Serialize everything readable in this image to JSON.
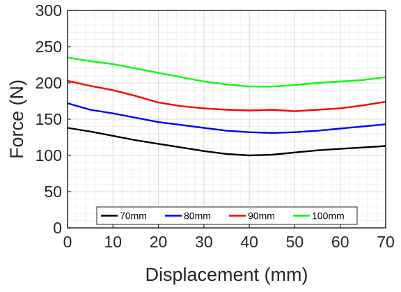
{
  "chart_data": {
    "type": "line",
    "xlabel": "Displacement (mm)",
    "ylabel": "Force (N)",
    "xlim": [
      0,
      70
    ],
    "ylim": [
      0,
      300
    ],
    "xticks": [
      0,
      10,
      20,
      30,
      40,
      50,
      60,
      70
    ],
    "yticks": [
      0,
      50,
      100,
      150,
      200,
      250,
      300
    ],
    "grid": true,
    "minor_grid": true,
    "legend_position": "bottom-center",
    "series": [
      {
        "name": "70mm",
        "color": "#000000",
        "x": [
          0,
          5,
          10,
          15,
          20,
          25,
          30,
          35,
          40,
          45,
          50,
          55,
          60,
          65,
          70
        ],
        "y": [
          138,
          133,
          127,
          121,
          116,
          111,
          106,
          102,
          100,
          101,
          104,
          107,
          109,
          111,
          113
        ]
      },
      {
        "name": "80mm",
        "color": "#0000ff",
        "x": [
          0,
          5,
          10,
          15,
          20,
          25,
          30,
          35,
          40,
          45,
          50,
          55,
          60,
          65,
          70
        ],
        "y": [
          172,
          163,
          158,
          152,
          146,
          142,
          138,
          134,
          132,
          131,
          132,
          134,
          137,
          140,
          143
        ]
      },
      {
        "name": "90mm",
        "color": "#ff0000",
        "x": [
          0,
          5,
          10,
          15,
          20,
          25,
          30,
          35,
          40,
          45,
          50,
          55,
          60,
          65,
          70
        ],
        "y": [
          203,
          196,
          190,
          182,
          173,
          168,
          165,
          163,
          162,
          163,
          161,
          163,
          165,
          169,
          174
        ]
      },
      {
        "name": "100mm",
        "color": "#00ff00",
        "x": [
          0,
          5,
          10,
          15,
          20,
          25,
          30,
          35,
          40,
          45,
          50,
          55,
          60,
          65,
          70
        ],
        "y": [
          235,
          230,
          226,
          220,
          214,
          208,
          202,
          198,
          195,
          195,
          197,
          200,
          202,
          204,
          208
        ]
      }
    ]
  }
}
